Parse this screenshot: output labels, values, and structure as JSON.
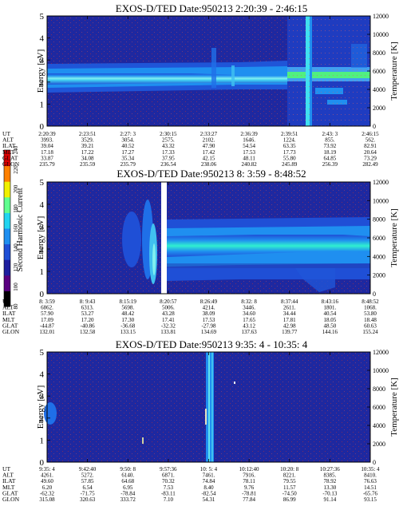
{
  "colorbar": {
    "label": "Second Harmonic Current",
    "ticks": [
      "80",
      "100",
      "120",
      "140",
      "160",
      "180",
      "200",
      "220",
      "240"
    ],
    "colors": [
      "#000000",
      "#5a0080",
      "#1e1e9e",
      "#1f4fd6",
      "#1f8ff0",
      "#22d4f0",
      "#60ff90",
      "#f0f000",
      "#ff8000",
      "#e00000"
    ]
  },
  "chart_data": [
    {
      "type": "heatmap",
      "title": "EXOS-D/TED   Date:950213  2:20:39 - 2:46:15",
      "ylabel": "Energy [eV]",
      "y2label": "Temperature [K]",
      "ylim": [
        0,
        5
      ],
      "y2lim": [
        0,
        12000
      ],
      "yticks": [
        "0",
        "1",
        "2",
        "3",
        "4",
        "5"
      ],
      "y2ticks": [
        "0",
        "2000",
        "4000",
        "6000",
        "8000",
        "10000",
        "12000"
      ],
      "orbit_rows": [
        {
          "name": "UT",
          "values": [
            "2:20:39",
            "2:23:51",
            "2:27: 3",
            "2:30:15",
            "2:33:27",
            "2:36:39",
            "2:39:51",
            "2:43: 3",
            "2:46:15"
          ]
        },
        {
          "name": "ALT",
          "values": [
            "3993.",
            "3529.",
            "3054.",
            "2575.",
            "2102.",
            "1646.",
            "1224.",
            "855.",
            "562."
          ]
        },
        {
          "name": "ILAT",
          "values": [
            "39.04",
            "39.21",
            "40.52",
            "43.32",
            "47.90",
            "54.54",
            "63.35",
            "73.92",
            "82.91"
          ]
        },
        {
          "name": "MLT",
          "values": [
            "17.18",
            "17.22",
            "17.27",
            "17.33",
            "17.42",
            "17.53",
            "17.73",
            "18.19",
            "20.64"
          ]
        },
        {
          "name": "GLAT",
          "values": [
            "33.87",
            "34.08",
            "35.34",
            "37.95",
            "42.15",
            "48.11",
            "55.80",
            "64.85",
            "73.29"
          ]
        },
        {
          "name": "GLON",
          "values": [
            "235.79",
            "235.59",
            "235.79",
            "236.54",
            "238.06",
            "240.82",
            "245.89",
            "256.39",
            "282.49"
          ]
        }
      ]
    },
    {
      "type": "heatmap",
      "title": "EXOS-D/TED   Date:950213  8: 3:59 - 8:48:52",
      "ylabel": "Energy [eV]",
      "y2label": "Temperature [K]",
      "ylim": [
        0,
        5
      ],
      "y2lim": [
        0,
        12000
      ],
      "yticks": [
        "0",
        "1",
        "2",
        "3",
        "4",
        "5"
      ],
      "y2ticks": [
        "0",
        "2000",
        "4000",
        "6000",
        "8000",
        "10000",
        "12000"
      ],
      "orbit_rows": [
        {
          "name": "UT",
          "values": [
            "8: 3:59",
            "8: 9:43",
            "8:15:19",
            "8:20:57",
            "8:26:49",
            "8:32: 8",
            "8:37:44",
            "8:43:16",
            "8:48:52"
          ]
        },
        {
          "name": "ALT",
          "values": [
            "6862.",
            "6313.",
            "5698.",
            "5006.",
            "4214.",
            "3446.",
            "2611.",
            "1801.",
            "1068."
          ]
        },
        {
          "name": "ILAT",
          "values": [
            "57.90",
            "53.27",
            "48.42",
            "43.28",
            "38.09",
            "34.60",
            "34.44",
            "40.54",
            "53.80"
          ]
        },
        {
          "name": "MLT",
          "values": [
            "17.09",
            "17.20",
            "17.30",
            "17.41",
            "17.53",
            "17.65",
            "17.81",
            "18.05",
            "18.48"
          ]
        },
        {
          "name": "GLAT",
          "values": [
            "-44.87",
            "-40.86",
            "-36.68",
            "-32.32",
            "-27.98",
            "43.12",
            "42.98",
            "48.50",
            "60.63"
          ]
        },
        {
          "name": "GLON",
          "values": [
            "132.01",
            "132.58",
            "133.15",
            "133.81",
            "134.69",
            "137.63",
            "139.77",
            "144.16",
            "155.24"
          ]
        }
      ]
    },
    {
      "type": "heatmap",
      "title": "EXOS-D/TED   Date:950213  9:35: 4 - 10:35: 4",
      "ylabel": "Energy [eV]",
      "y2label": "Temperature [K]",
      "ylim": [
        0,
        5
      ],
      "y2lim": [
        0,
        12000
      ],
      "yticks": [
        "0",
        "1",
        "2",
        "3",
        "4",
        "5"
      ],
      "y2ticks": [
        "0",
        "2000",
        "4000",
        "6000",
        "8000",
        "10000",
        "12000"
      ],
      "orbit_rows": [
        {
          "name": "UT",
          "values": [
            "9:35: 4",
            "9:42:40",
            "9:50: 8",
            "9:57:36",
            "10: 5: 4",
            "10:12:40",
            "10:20: 8",
            "10:27:36",
            "10:35: 4"
          ]
        },
        {
          "name": "ALT",
          "values": [
            "4261.",
            "5272.",
            "6140.",
            "6871.",
            "7461.",
            "7916.",
            "8221.",
            "8385.",
            "8410."
          ]
        },
        {
          "name": "ILAT",
          "values": [
            "49.60",
            "57.85",
            "64.68",
            "70.32",
            "74.84",
            "78.11",
            "79.55",
            "78.92",
            "76.63"
          ]
        },
        {
          "name": "MLT",
          "values": [
            "6.20",
            "6.54",
            "6.95",
            "7.53",
            "8.40",
            "9.76",
            "11.57",
            "13.30",
            "14.51"
          ]
        },
        {
          "name": "GLAT",
          "values": [
            "-62.32",
            "-71.75",
            "-78.84",
            "-83.11",
            "-82.54",
            "-78.81",
            "-74.50",
            "-70.13",
            "-65.76"
          ]
        },
        {
          "name": "GLON",
          "values": [
            "315.08",
            "320.63",
            "333.72",
            "7.10",
            "54.31",
            "77.84",
            "86.99",
            "91.14",
            "93.15"
          ]
        }
      ]
    }
  ]
}
